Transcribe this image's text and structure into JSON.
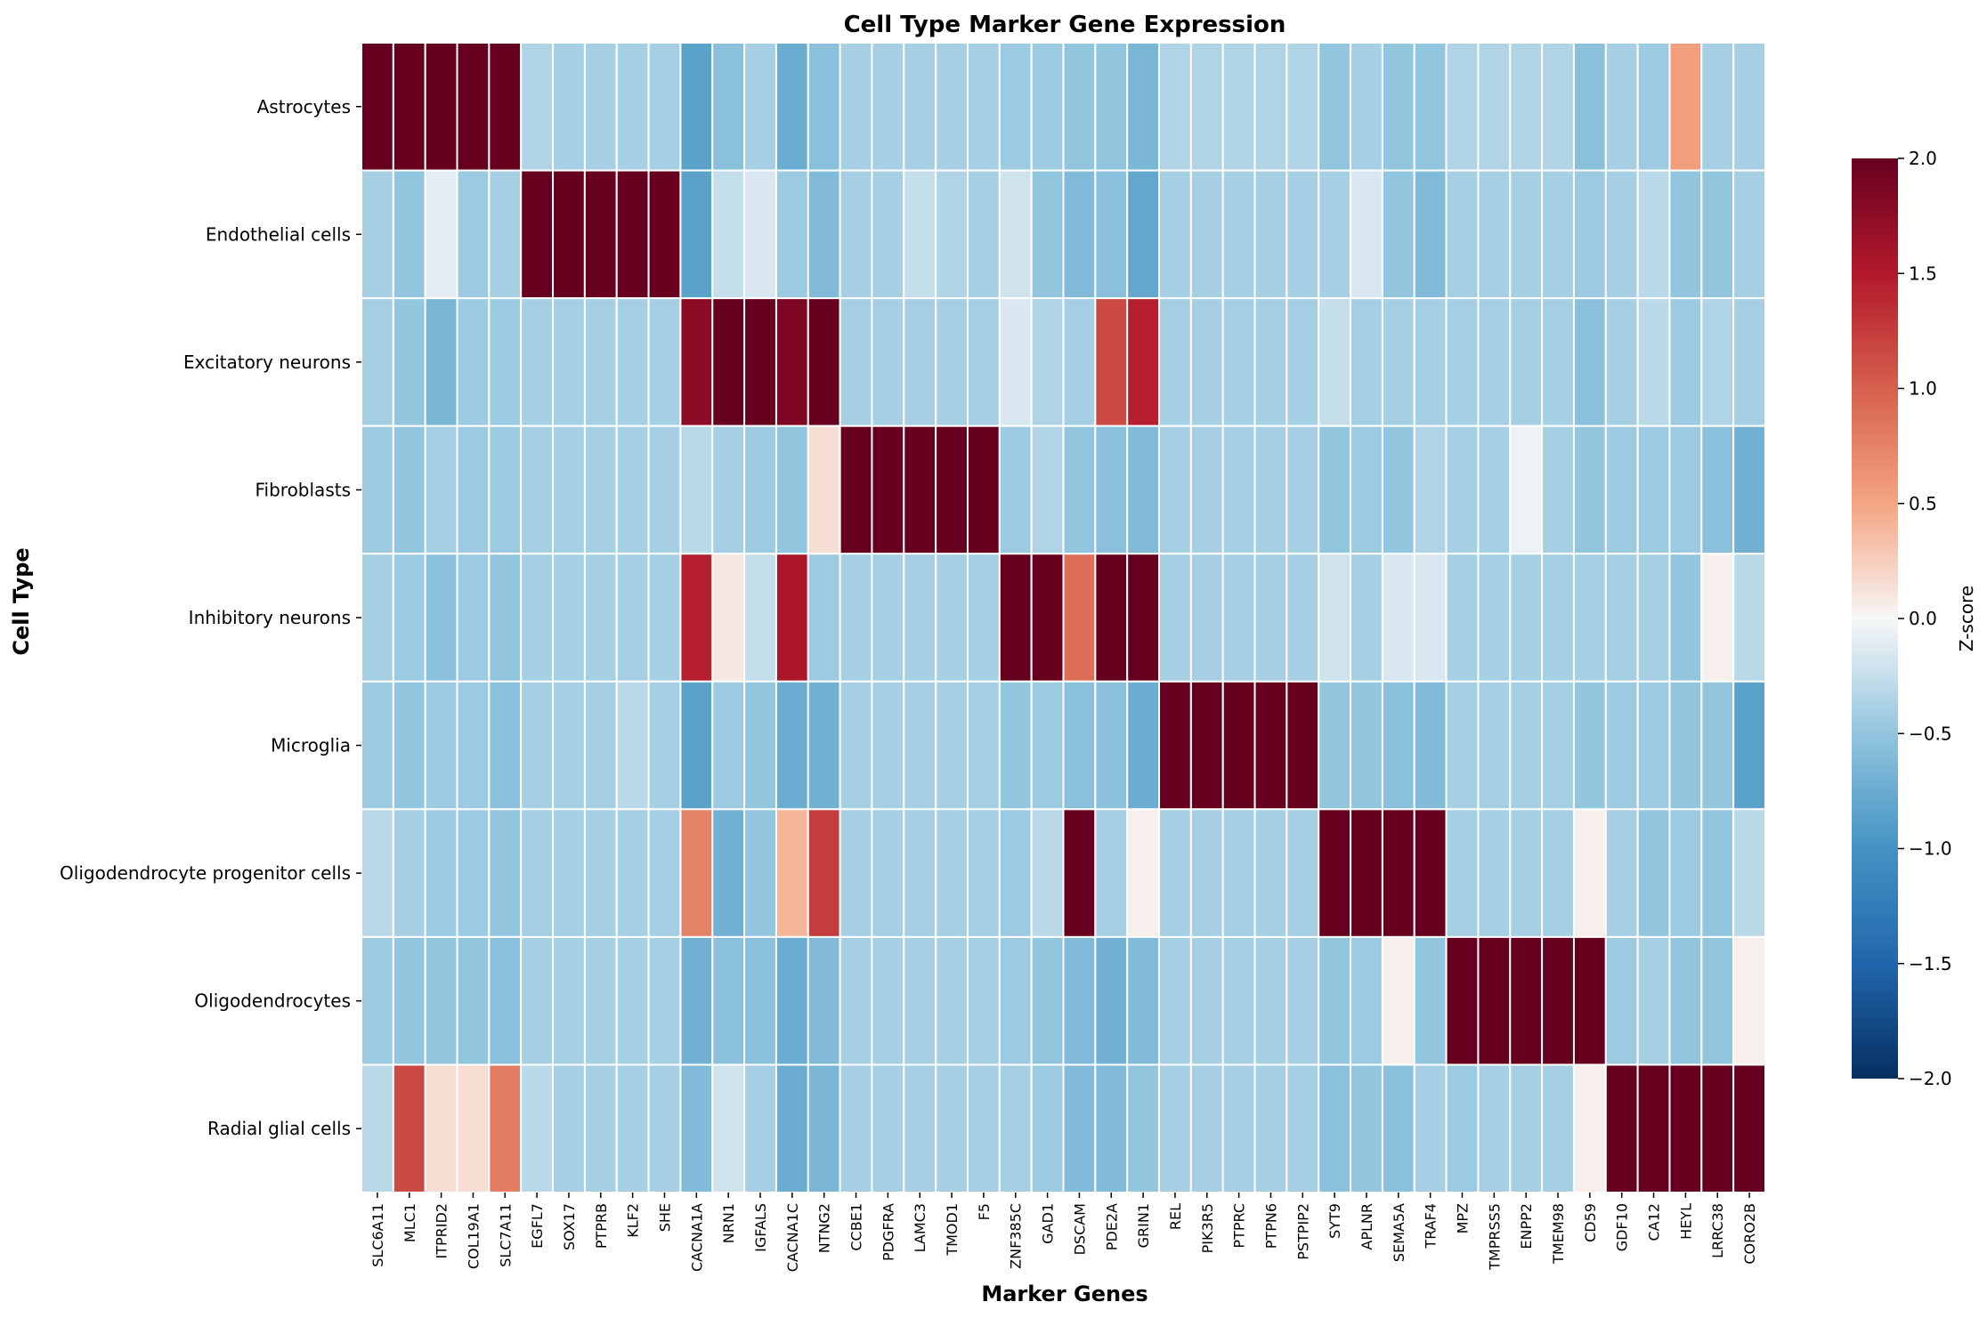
{
  "chart_data": {
    "type": "heatmap",
    "title": "Cell Type Marker Gene Expression",
    "xlabel": "Marker Genes",
    "ylabel": "Cell Type",
    "colorbar_label": "Z-score",
    "colormap": "RdBu_r",
    "vmin": -2.0,
    "vmax": 2.0,
    "colorbar_ticks": [
      "2.0",
      "1.5",
      "1.0",
      "0.5",
      "0.0",
      "−0.5",
      "−1.0",
      "−1.5",
      "−2.0"
    ],
    "rows": [
      "Astrocytes",
      "Endothelial cells",
      "Excitatory neurons",
      "Fibroblasts",
      "Inhibitory neurons",
      "Microglia",
      "Oligodendrocyte progenitor cells",
      "Oligodendrocytes",
      "Radial glial cells"
    ],
    "columns": [
      "SLC6A11",
      "MLC1",
      "ITPRID2",
      "COL19A1",
      "SLC7A11",
      "EGFL7",
      "SOX17",
      "PTPRB",
      "KLF2",
      "SHE",
      "CACNA1A",
      "NRN1",
      "IGFALS",
      "CACNA1C",
      "NTNG2",
      "CCBE1",
      "PDGFRA",
      "LAMC3",
      "TMOD1",
      "F5",
      "ZNF385C",
      "GAD1",
      "DSCAM",
      "PDE2A",
      "GRIN1",
      "REL",
      "PIK3R5",
      "PTPRC",
      "PTPN6",
      "PSTPIP2",
      "SYT9",
      "APLNR",
      "SEMA5A",
      "TRAF4",
      "MPZ",
      "TMPRSS5",
      "ENPP2",
      "TMEM98",
      "CD59",
      "GDF10",
      "CA12",
      "HEYL",
      "LRRC38",
      "CORO2B"
    ],
    "values": [
      [
        2.0,
        2.0,
        2.0,
        2.0,
        2.0,
        -0.35,
        -0.4,
        -0.4,
        -0.4,
        -0.4,
        -0.85,
        -0.55,
        -0.4,
        -0.75,
        -0.55,
        -0.4,
        -0.4,
        -0.4,
        -0.4,
        -0.4,
        -0.45,
        -0.45,
        -0.5,
        -0.5,
        -0.65,
        -0.35,
        -0.35,
        -0.35,
        -0.35,
        -0.35,
        -0.5,
        -0.4,
        -0.5,
        -0.5,
        -0.35,
        -0.35,
        -0.35,
        -0.35,
        -0.55,
        -0.4,
        -0.45,
        0.55,
        -0.4,
        -0.4
      ],
      [
        -0.4,
        -0.5,
        -0.1,
        -0.45,
        -0.4,
        2.0,
        2.0,
        2.0,
        2.0,
        2.0,
        -0.85,
        -0.25,
        -0.15,
        -0.45,
        -0.6,
        -0.4,
        -0.4,
        -0.25,
        -0.35,
        -0.4,
        -0.2,
        -0.5,
        -0.6,
        -0.55,
        -0.8,
        -0.4,
        -0.4,
        -0.4,
        -0.4,
        -0.4,
        -0.4,
        -0.15,
        -0.5,
        -0.6,
        -0.4,
        -0.4,
        -0.4,
        -0.4,
        -0.45,
        -0.4,
        -0.3,
        -0.5,
        -0.5,
        -0.4
      ],
      [
        -0.4,
        -0.5,
        -0.65,
        -0.45,
        -0.45,
        -0.4,
        -0.4,
        -0.4,
        -0.4,
        -0.4,
        1.75,
        2.0,
        2.0,
        1.85,
        2.0,
        -0.4,
        -0.4,
        -0.4,
        -0.4,
        -0.4,
        -0.15,
        -0.35,
        -0.4,
        1.15,
        1.45,
        -0.4,
        -0.4,
        -0.4,
        -0.4,
        -0.4,
        -0.25,
        -0.4,
        -0.4,
        -0.4,
        -0.4,
        -0.4,
        -0.4,
        -0.4,
        -0.55,
        -0.4,
        -0.3,
        -0.45,
        -0.35,
        -0.4
      ],
      [
        -0.45,
        -0.5,
        -0.4,
        -0.45,
        -0.45,
        -0.4,
        -0.4,
        -0.4,
        -0.4,
        -0.4,
        -0.3,
        -0.4,
        -0.45,
        -0.5,
        0.15,
        2.0,
        2.0,
        2.0,
        2.0,
        2.0,
        -0.45,
        -0.35,
        -0.5,
        -0.55,
        -0.6,
        -0.4,
        -0.4,
        -0.4,
        -0.4,
        -0.4,
        -0.5,
        -0.45,
        -0.5,
        -0.35,
        -0.4,
        -0.4,
        -0.05,
        -0.4,
        -0.5,
        -0.45,
        -0.45,
        -0.45,
        -0.55,
        -0.7
      ],
      [
        -0.4,
        -0.45,
        -0.55,
        -0.45,
        -0.5,
        -0.4,
        -0.4,
        -0.4,
        -0.4,
        -0.4,
        1.45,
        0.1,
        -0.25,
        1.55,
        -0.45,
        -0.4,
        -0.4,
        -0.4,
        -0.4,
        -0.4,
        2.0,
        2.0,
        0.9,
        2.0,
        2.0,
        -0.4,
        -0.4,
        -0.4,
        -0.4,
        -0.4,
        -0.2,
        -0.4,
        -0.15,
        -0.15,
        -0.4,
        -0.4,
        -0.4,
        -0.4,
        -0.4,
        -0.4,
        -0.4,
        -0.5,
        0.05,
        -0.3
      ],
      [
        -0.45,
        -0.5,
        -0.45,
        -0.45,
        -0.55,
        -0.4,
        -0.4,
        -0.4,
        -0.3,
        -0.4,
        -0.85,
        -0.45,
        -0.5,
        -0.75,
        -0.7,
        -0.4,
        -0.4,
        -0.4,
        -0.4,
        -0.4,
        -0.5,
        -0.45,
        -0.55,
        -0.55,
        -0.75,
        2.0,
        2.0,
        2.0,
        2.0,
        2.0,
        -0.5,
        -0.5,
        -0.55,
        -0.6,
        -0.4,
        -0.4,
        -0.4,
        -0.4,
        -0.5,
        -0.45,
        -0.45,
        -0.5,
        -0.5,
        -0.85
      ],
      [
        -0.3,
        -0.4,
        -0.45,
        -0.45,
        -0.5,
        -0.4,
        -0.4,
        -0.4,
        -0.4,
        -0.4,
        0.75,
        -0.7,
        -0.5,
        0.4,
        1.25,
        -0.4,
        -0.4,
        -0.4,
        -0.4,
        -0.4,
        -0.45,
        -0.3,
        2.0,
        -0.4,
        0.05,
        -0.4,
        -0.4,
        -0.4,
        -0.4,
        -0.4,
        2.0,
        2.0,
        2.0,
        2.0,
        -0.4,
        -0.4,
        -0.4,
        -0.4,
        0.05,
        -0.4,
        -0.5,
        -0.45,
        -0.5,
        -0.3
      ],
      [
        -0.45,
        -0.5,
        -0.5,
        -0.5,
        -0.55,
        -0.4,
        -0.4,
        -0.4,
        -0.4,
        -0.4,
        -0.7,
        -0.55,
        -0.55,
        -0.75,
        -0.6,
        -0.4,
        -0.4,
        -0.4,
        -0.4,
        -0.4,
        -0.45,
        -0.5,
        -0.6,
        -0.7,
        -0.6,
        -0.4,
        -0.4,
        -0.4,
        -0.4,
        -0.4,
        -0.5,
        -0.45,
        0.05,
        -0.5,
        2.0,
        2.0,
        2.0,
        2.0,
        2.0,
        -0.45,
        -0.4,
        -0.5,
        -0.5,
        0.05
      ],
      [
        -0.3,
        1.15,
        0.15,
        0.15,
        0.8,
        -0.3,
        -0.4,
        -0.4,
        -0.4,
        -0.4,
        -0.6,
        -0.2,
        -0.4,
        -0.75,
        -0.65,
        -0.4,
        -0.4,
        -0.4,
        -0.4,
        -0.4,
        -0.4,
        -0.45,
        -0.6,
        -0.6,
        -0.5,
        -0.4,
        -0.4,
        -0.4,
        -0.4,
        -0.4,
        -0.55,
        -0.5,
        -0.55,
        -0.4,
        -0.45,
        -0.4,
        -0.4,
        -0.4,
        0.05,
        2.0,
        2.0,
        2.0,
        2.0,
        2.0
      ]
    ]
  }
}
